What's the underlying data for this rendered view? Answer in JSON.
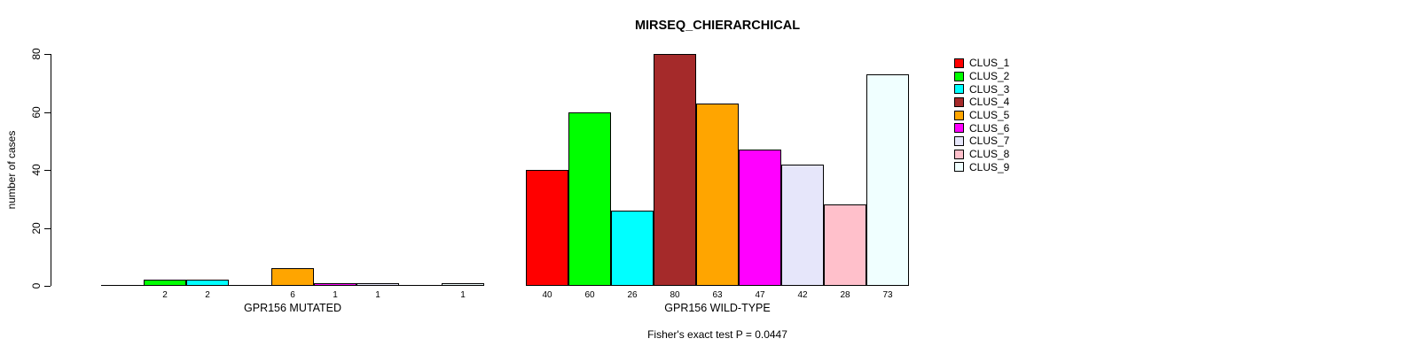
{
  "chart_data": {
    "type": "bar",
    "title": "MIRSEQ_CHIERARCHICAL",
    "ylabel": "number of cases",
    "ylim": [
      0,
      80
    ],
    "yticks": [
      0,
      20,
      40,
      60,
      80
    ],
    "grid": false,
    "legend_position": "right",
    "categories": [
      "CLUS_1",
      "CLUS_2",
      "CLUS_3",
      "CLUS_4",
      "CLUS_5",
      "CLUS_6",
      "CLUS_7",
      "CLUS_8",
      "CLUS_9"
    ],
    "colors": [
      "#FF0000",
      "#00FF00",
      "#00FFFF",
      "#A52A2A",
      "#FFA500",
      "#FF00FF",
      "#E6E6FA",
      "#FFC0CB",
      "#F0FFFF"
    ],
    "groups": [
      {
        "label": "GPR156 MUTATED",
        "values": [
          0,
          2,
          2,
          0,
          6,
          1,
          1,
          0,
          1
        ]
      },
      {
        "label": "GPR156 WILD-TYPE",
        "values": [
          40,
          60,
          26,
          80,
          63,
          47,
          42,
          28,
          73
        ]
      }
    ],
    "value_labels_shown_for_zero": false,
    "annotation": "Fisher's exact test P = 0.0447"
  }
}
